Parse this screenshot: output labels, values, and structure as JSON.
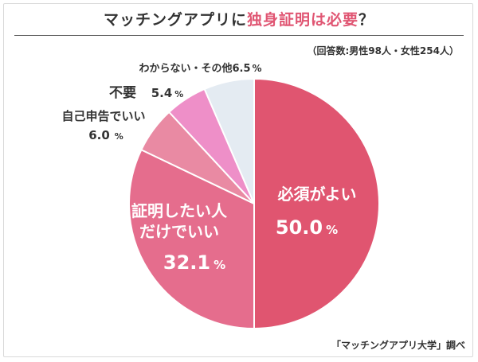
{
  "title": {
    "before": "マッチングアプリに",
    "highlight": "独身証明は必要",
    "after": "？"
  },
  "note": "（回答数:男性98人・女性254人）",
  "source": "「マッチングアプリ大学」調べ",
  "chart_data": {
    "type": "pie",
    "unit": "%",
    "slices": [
      {
        "label": "必須がよい",
        "value": 50.0,
        "color": "#e05570"
      },
      {
        "label": "証明したい人だけでいい",
        "label_lines": [
          "証明したい人",
          "だけでいい"
        ],
        "value": 32.1,
        "color": "#e56d8d"
      },
      {
        "label": "自己申告でいい",
        "value": 6.0,
        "color": "#e98aa3"
      },
      {
        "label": "不要",
        "value": 5.4,
        "color": "#ee8fc8"
      },
      {
        "label": "わからない・その他",
        "value": 6.5,
        "color": "#e4ebf2"
      }
    ]
  }
}
